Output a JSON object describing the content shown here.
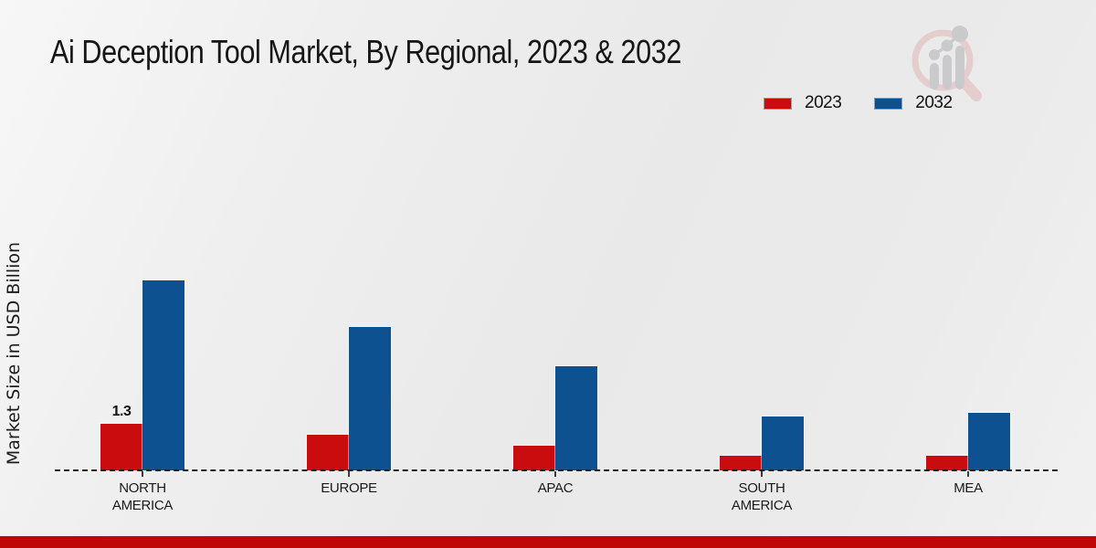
{
  "chart_data": {
    "type": "bar",
    "title": "Ai Deception Tool Market, By Regional, 2023 & 2032",
    "ylabel": "Market Size in USD Billion",
    "xlabel": "",
    "categories": [
      "NORTH AMERICA",
      "EUROPE",
      "APAC",
      "SOUTH AMERICA",
      "MEA"
    ],
    "category_display_lines": [
      [
        "NORTH",
        "AMERICA"
      ],
      [
        "EUROPE"
      ],
      [
        "APAC"
      ],
      [
        "SOUTH",
        "AMERICA"
      ],
      [
        "MEA"
      ]
    ],
    "series": [
      {
        "name": "2023",
        "color": "#c90d0e",
        "values": [
          1.3,
          1.0,
          0.7,
          0.4,
          0.4
        ]
      },
      {
        "name": "2032",
        "color": "#0d5191",
        "values": [
          5.3,
          4.0,
          2.9,
          1.5,
          1.6
        ]
      }
    ],
    "data_labels": [
      {
        "series_index": 0,
        "category_index": 0,
        "text": "1.3"
      }
    ],
    "ylim": [
      0,
      5.6
    ],
    "grid": false,
    "legend_position": "top-right",
    "baseline_style": "dashed"
  },
  "branding": {
    "watermark_icon": "magnifier-bar-chart-logo",
    "footer_color": "#c00707",
    "watermark_ring_color": "#dfa9ac",
    "watermark_glyph_color": "#c5c5c8"
  }
}
